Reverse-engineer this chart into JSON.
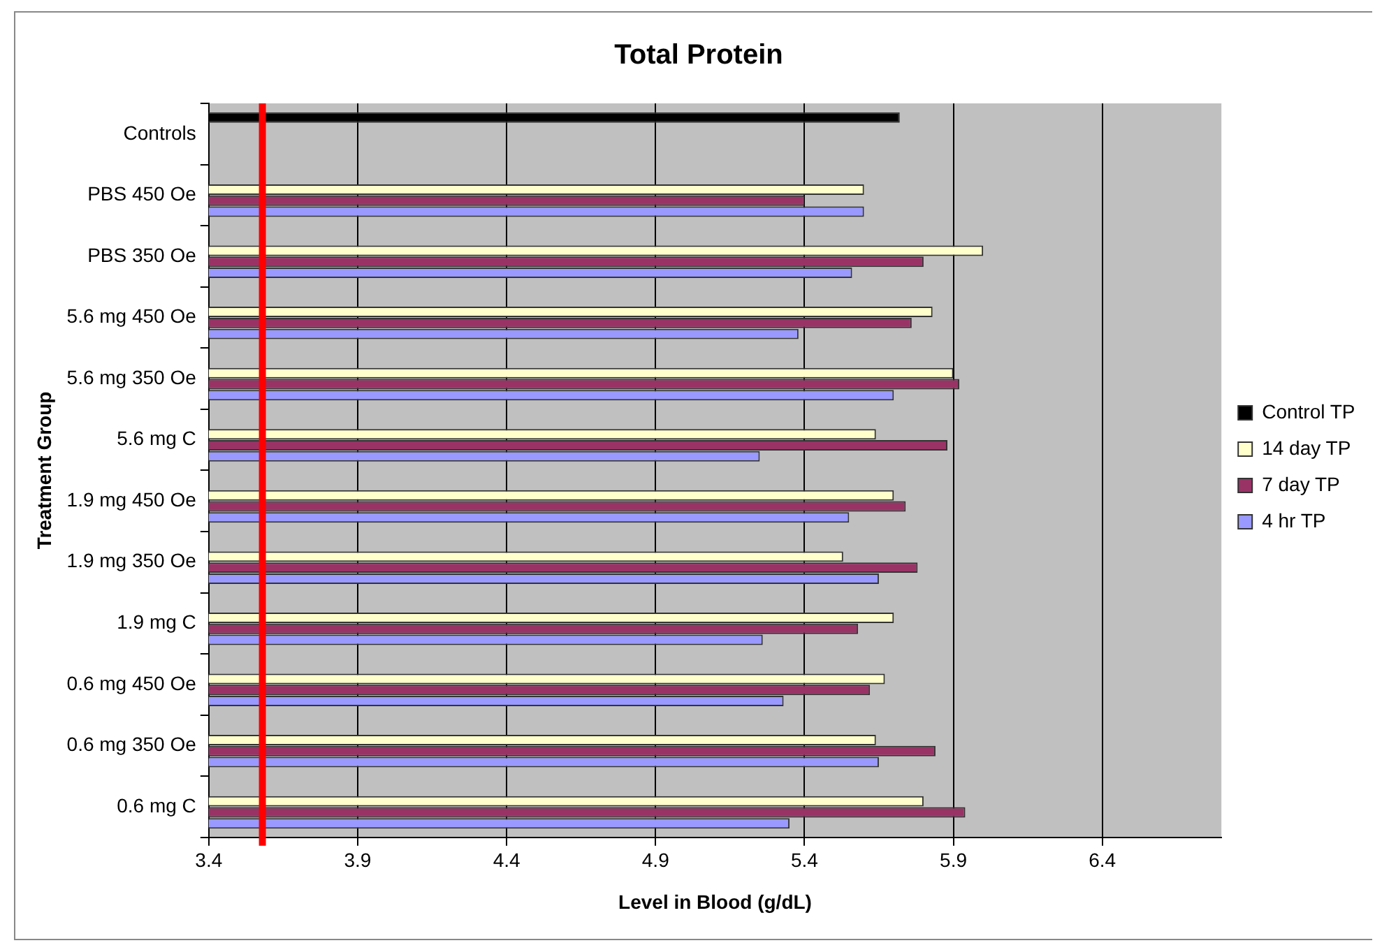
{
  "chart_data": {
    "type": "bar",
    "orientation": "horizontal",
    "title": "Total Protein",
    "xlabel": "Level in Blood (g/dL)",
    "ylabel": "Treatment Group",
    "categories": [
      "Controls",
      "PBS 450 Oe",
      "PBS 350 Oe",
      "5.6 mg 450 Oe",
      "5.6 mg 350 Oe",
      "5.6 mg C",
      "1.9 mg 450 Oe",
      "1.9 mg 350 Oe",
      "1.9 mg C",
      "0.6 mg 450 Oe",
      "0.6 mg 350 Oe",
      "0.6 mg C"
    ],
    "series": [
      {
        "name": "Control TP",
        "color": "#000000",
        "values": [
          5.72,
          null,
          null,
          null,
          null,
          null,
          null,
          null,
          null,
          null,
          null,
          null
        ]
      },
      {
        "name": "14 day TP",
        "color": "#ffffcc",
        "values": [
          null,
          5.6,
          6.0,
          5.83,
          5.9,
          5.64,
          5.7,
          5.53,
          5.7,
          5.67,
          5.64,
          5.8
        ]
      },
      {
        "name": "7 day TP",
        "color": "#993366",
        "values": [
          null,
          5.4,
          5.8,
          5.76,
          5.92,
          5.88,
          5.74,
          5.78,
          5.58,
          5.62,
          5.84,
          5.94
        ]
      },
      {
        "name": "4 hr TP",
        "color": "#9999ff",
        "values": [
          null,
          5.6,
          5.56,
          5.38,
          5.7,
          5.25,
          5.55,
          5.65,
          5.26,
          5.33,
          5.65,
          5.35
        ]
      }
    ],
    "xlim": [
      3.4,
      6.8
    ],
    "xticks": [
      3.4,
      3.9,
      4.4,
      4.9,
      5.4,
      5.9,
      6.4
    ],
    "ref_lines": [
      {
        "axis": "x",
        "value": 3.58,
        "color": "#ff0000"
      }
    ],
    "grid": "x",
    "legend": "right"
  }
}
